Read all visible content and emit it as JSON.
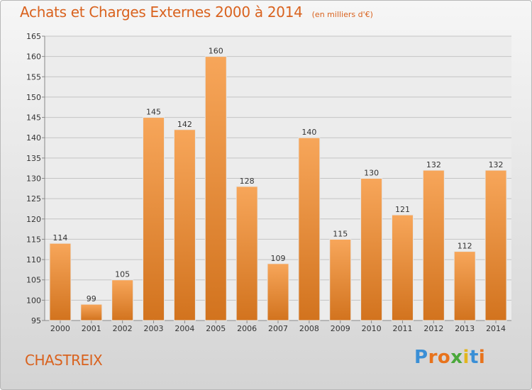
{
  "header": {
    "title": "Achats et Charges Externes 2000 à 2014",
    "unit": "(en milliers d'€)"
  },
  "footer": {
    "commune": "CHASTREIX",
    "logo_text": "Proxiti",
    "logo_colors": [
      "#3a8fd6",
      "#e8731c",
      "#e8731c",
      "#4aa83a",
      "#e3b51d",
      "#3a8fd6",
      "#e8731c"
    ]
  },
  "colors": {
    "bar_light": "#f7a65a",
    "bar_dark": "#d2731e",
    "accent": "#d9621e"
  },
  "chart_data": {
    "type": "bar",
    "categories": [
      "2000",
      "2001",
      "2002",
      "2003",
      "2004",
      "2005",
      "2006",
      "2007",
      "2008",
      "2009",
      "2010",
      "2011",
      "2012",
      "2013",
      "2014"
    ],
    "values": [
      114,
      99,
      105,
      145,
      142,
      160,
      128,
      109,
      140,
      115,
      130,
      121,
      132,
      112,
      132
    ],
    "ylim": [
      95,
      165
    ],
    "yticks": [
      95,
      100,
      105,
      110,
      115,
      120,
      125,
      130,
      135,
      140,
      145,
      150,
      155,
      160,
      165
    ],
    "grid": true,
    "xlabel": "",
    "ylabel": ""
  }
}
